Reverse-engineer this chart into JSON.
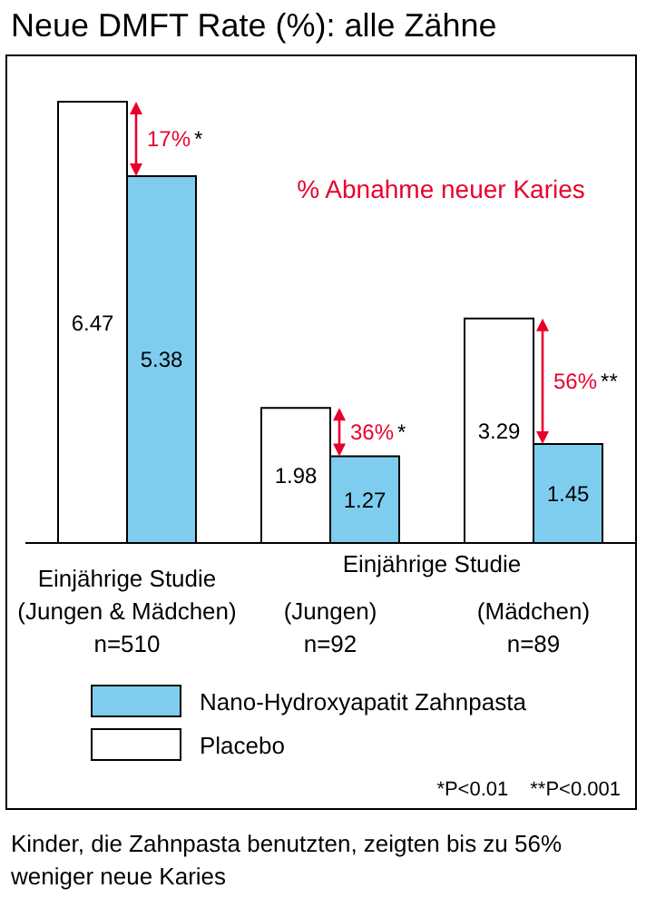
{
  "chart_data": {
    "type": "bar",
    "title": "Neue DMFT Rate (%): alle Zähne",
    "categories": [
      "Einjährige Studie\n(Jungen & Mädchen)\nn=510",
      "(Jungen)\nn=92",
      "(Mädchen)\nn=89"
    ],
    "series": [
      {
        "name": "Placebo",
        "color": "#ffffff",
        "values": [
          6.47,
          1.98,
          3.29
        ]
      },
      {
        "name": "Nano-Hydroxyapatit Zahnpasta",
        "color": "#7fcdee",
        "values": [
          5.38,
          1.27,
          1.45
        ]
      }
    ],
    "data_labels": true,
    "legend": "bottom",
    "grid": false,
    "annotations": [
      "17%",
      "*",
      "36%",
      "*",
      "56%",
      "**",
      "% Abnahme neuer Karies",
      "Einjährige Studie",
      "*P<0.01",
      "**P<0.001",
      "Kinder, die Zahnpasta benutzten, zeigten bis zu 56% weniger neue Karies"
    ]
  }
}
